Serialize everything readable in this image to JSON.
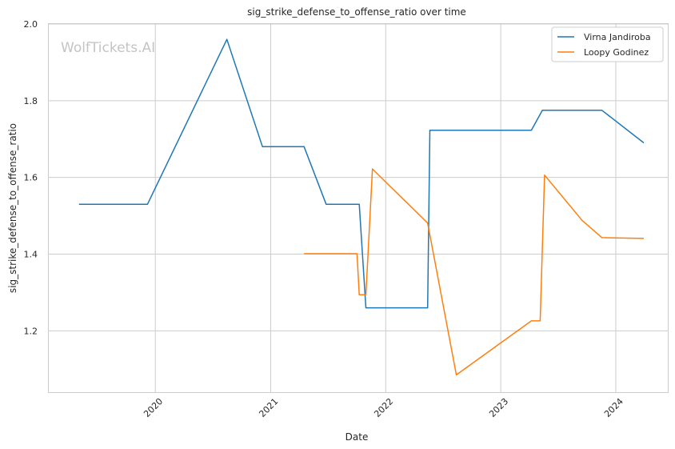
{
  "chart_data": {
    "type": "line",
    "title": "sig_strike_defense_to_offense_ratio over time",
    "xlabel": "Date",
    "ylabel": "sig_strike_defense_to_offense_ratio",
    "watermark": "WolfTickets.AI",
    "x_ticks": [
      "2020",
      "2021",
      "2022",
      "2023",
      "2024"
    ],
    "y_ticks": [
      "1.2",
      "1.4",
      "1.6",
      "1.8",
      "2.0"
    ],
    "xlim": [
      "2019-01-28",
      "2024-06-14"
    ],
    "ylim": [
      1.04,
      2.0
    ],
    "grid": true,
    "legend_position": "top-right",
    "series": [
      {
        "name": "Virna Jandiroba",
        "color": "#1f77b4",
        "points": [
          [
            "2019-05-04",
            1.53
          ],
          [
            "2019-12-07",
            1.53
          ],
          [
            "2020-08-15",
            1.96
          ],
          [
            "2020-12-06",
            1.68
          ],
          [
            "2021-04-17",
            1.68
          ],
          [
            "2021-06-26",
            1.53
          ],
          [
            "2021-10-09",
            1.53
          ],
          [
            "2021-10-30",
            1.26
          ],
          [
            "2022-05-14",
            1.26
          ],
          [
            "2022-05-21",
            1.723
          ],
          [
            "2023-04-08",
            1.723
          ],
          [
            "2023-05-13",
            1.775
          ],
          [
            "2023-11-18",
            1.775
          ],
          [
            "2024-03-30",
            1.69
          ]
        ]
      },
      {
        "name": "Loopy Godinez",
        "color": "#ff7f0e",
        "points": [
          [
            "2021-04-17",
            1.401
          ],
          [
            "2021-10-02",
            1.401
          ],
          [
            "2021-10-09",
            1.294
          ],
          [
            "2021-10-30",
            1.294
          ],
          [
            "2021-11-20",
            1.622
          ],
          [
            "2022-05-14",
            1.481
          ],
          [
            "2022-08-13",
            1.085
          ],
          [
            "2023-04-08",
            1.226
          ],
          [
            "2023-05-06",
            1.226
          ],
          [
            "2023-05-20",
            1.606
          ],
          [
            "2023-09-16",
            1.488
          ],
          [
            "2023-11-18",
            1.443
          ],
          [
            "2024-03-30",
            1.441
          ]
        ]
      }
    ]
  }
}
